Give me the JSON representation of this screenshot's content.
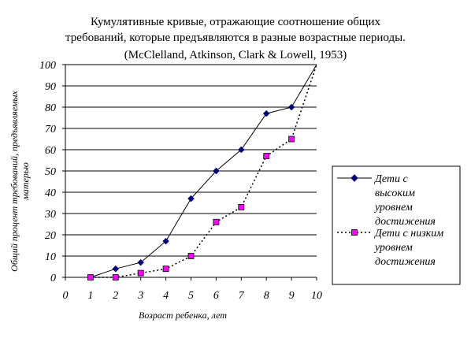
{
  "chart_data": {
    "type": "line",
    "title_lines": [
      "Кумулятивные кривые, отражающие соотношение общих",
      "требований, которые предъявляются в разные возрастные периоды.",
      "(McClelland, Atkinson, Clark & Lowell, 1953)"
    ],
    "xlabel": "Возраст ребенка, лет",
    "ylabel_lines": [
      "Общий процент требований, предъявляемых",
      "матерью"
    ],
    "xlim": [
      0,
      10
    ],
    "ylim": [
      0,
      100
    ],
    "xticks": [
      0,
      1,
      2,
      3,
      4,
      5,
      6,
      7,
      8,
      9,
      10
    ],
    "yticks": [
      0,
      10,
      20,
      30,
      40,
      50,
      60,
      70,
      80,
      90,
      100
    ],
    "grid": "horizontal",
    "legend_position": "right",
    "series": [
      {
        "name_lines": [
          "Дети с",
          "высоким",
          "уровнем",
          "достижения"
        ],
        "color": "#000080",
        "line_style": "solid",
        "marker": "diamond",
        "x": [
          1,
          2,
          3,
          4,
          5,
          6,
          7,
          8,
          9,
          10
        ],
        "y": [
          0,
          4,
          7,
          17,
          37,
          50,
          60,
          77,
          80,
          100
        ]
      },
      {
        "name_lines": [
          "Дети с низким",
          "уровнем",
          "достижения"
        ],
        "color": "#ff00ff",
        "line_style": "dotted",
        "marker": "square",
        "x": [
          1,
          2,
          3,
          4,
          5,
          6,
          7,
          8,
          9,
          10
        ],
        "y": [
          0,
          0,
          2,
          4,
          10,
          26,
          33,
          57,
          65,
          100
        ]
      }
    ]
  }
}
